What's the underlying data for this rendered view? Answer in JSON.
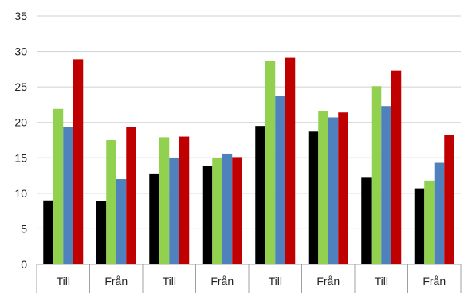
{
  "chart_data": {
    "type": "bar",
    "categories": [
      "Till",
      "Från",
      "Till",
      "Från",
      "Till",
      "Från",
      "Till",
      "Från"
    ],
    "series": [
      {
        "color": "#000000",
        "values": [
          9.0,
          8.9,
          12.8,
          13.8,
          19.5,
          18.7,
          12.3,
          10.7
        ]
      },
      {
        "color": "#92d050",
        "values": [
          21.9,
          17.5,
          17.9,
          15.0,
          28.7,
          21.6,
          25.1,
          11.8
        ]
      },
      {
        "color": "#4f81bd",
        "values": [
          19.3,
          12.0,
          15.0,
          15.6,
          23.7,
          20.7,
          22.3,
          14.3
        ]
      },
      {
        "color": "#c00000",
        "values": [
          28.9,
          19.4,
          18.0,
          15.1,
          29.1,
          21.4,
          27.3,
          18.2
        ]
      }
    ],
    "ylim": [
      0,
      35
    ],
    "yticks": [
      0,
      5,
      10,
      15,
      20,
      25,
      30,
      35
    ],
    "grid": true,
    "title": "",
    "xlabel": "",
    "ylabel": ""
  }
}
